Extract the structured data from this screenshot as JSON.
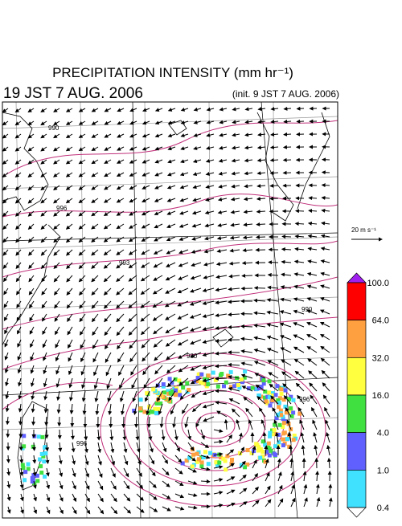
{
  "header": {
    "title": "PRECIPITATION INTENSITY (mm hr⁻¹)",
    "valid_time": "19 JST 7 AUG. 2006",
    "init_time": "(init. 9 JST 7 AUG. 2006)"
  },
  "wind_scale": {
    "label": "20 m s⁻¹"
  },
  "colorbar": {
    "labels": [
      "100.0",
      "64.0",
      "32.0",
      "16.0",
      "4.0",
      "1.0",
      "0.4"
    ],
    "colors": [
      "#a020f0",
      "#ff0000",
      "#ffa040",
      "#ffff40",
      "#40e040",
      "#6060ff",
      "#40e0ff",
      "#ffffff"
    ]
  },
  "isobar_labels": [
    "990",
    "996",
    "996",
    "993",
    "990",
    "980",
    "996"
  ]
}
